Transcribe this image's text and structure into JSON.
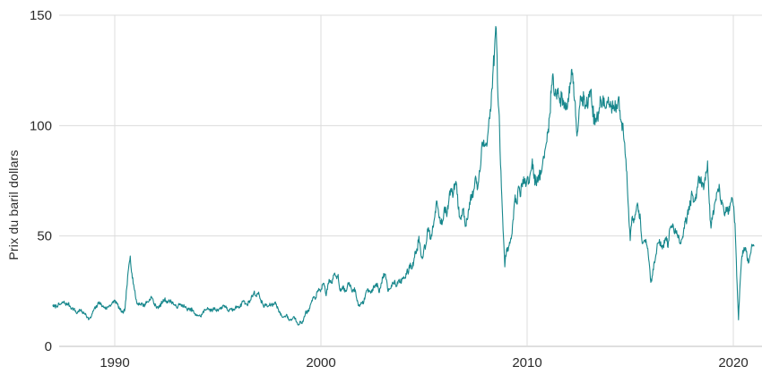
{
  "colors": {
    "line": "#17878C",
    "grid": "#DCDCDC",
    "axis_line": "#BFBFBF",
    "text": "#2B2B2B",
    "background": "#FFFFFF"
  },
  "chart_data": {
    "type": "line",
    "title": "",
    "xlabel": "",
    "ylabel": "Prix du baril dollars",
    "legend_position": "none",
    "grid": true,
    "x_ticks": [
      "1990",
      "2000",
      "2010",
      "2020"
    ],
    "y_ticks": [
      "0",
      "50",
      "100",
      "150"
    ],
    "xlim": [
      1987.0,
      2021.4
    ],
    "ylim": [
      0,
      150
    ],
    "series": [
      {
        "name": "Prix du baril (dollars)",
        "x_start_year": 1987,
        "x_step_months": 1,
        "values": [
          18.6,
          17.9,
          18.3,
          18.7,
          18.9,
          19.2,
          20.1,
          19.6,
          18.9,
          19.3,
          18.2,
          17.2,
          17.0,
          16.2,
          14.8,
          16.2,
          16.3,
          15.6,
          14.9,
          14.9,
          13.2,
          12.3,
          12.9,
          15.0,
          16.9,
          17.5,
          18.8,
          20.2,
          18.9,
          18.0,
          17.8,
          17.1,
          17.8,
          18.7,
          18.9,
          19.8,
          20.9,
          19.6,
          18.4,
          16.6,
          15.9,
          15.0,
          17.3,
          26.5,
          35.0,
          40.9,
          33.0,
          28.0,
          23.0,
          19.2,
          19.5,
          19.1,
          19.3,
          18.3,
          19.6,
          20.2,
          20.6,
          22.3,
          21.6,
          19.0,
          18.2,
          17.9,
          17.7,
          19.4,
          20.2,
          21.3,
          20.6,
          20.1,
          20.6,
          20.3,
          19.5,
          18.5,
          17.7,
          18.6,
          18.8,
          18.7,
          18.4,
          17.7,
          16.9,
          16.8,
          16.4,
          16.8,
          15.4,
          14.0,
          14.3,
          13.9,
          13.6,
          14.8,
          16.1,
          16.5,
          17.6,
          16.8,
          16.1,
          16.6,
          17.3,
          16.3,
          16.6,
          17.2,
          17.1,
          18.6,
          18.4,
          17.3,
          16.1,
          16.6,
          16.6,
          16.4,
          17.1,
          18.1,
          18.2,
          17.9,
          19.8,
          20.8,
          19.2,
          18.9,
          20.0,
          21.0,
          23.0,
          24.5,
          23.0,
          23.8,
          23.6,
          20.9,
          19.4,
          17.9,
          19.2,
          17.9,
          18.6,
          18.9,
          18.6,
          19.9,
          19.2,
          17.1,
          15.2,
          14.0,
          13.1,
          13.6,
          14.5,
          12.3,
          12.1,
          12.0,
          13.4,
          12.8,
          11.0,
          9.9,
          11.2,
          10.3,
          12.6,
          15.4,
          15.5,
          16.0,
          19.1,
          20.6,
          22.6,
          22.1,
          24.7,
          25.6,
          25.6,
          27.9,
          27.3,
          22.9,
          27.8,
          30.0,
          28.7,
          30.4,
          33.2,
          31.1,
          32.6,
          25.6,
          25.7,
          27.5,
          24.6,
          25.6,
          28.5,
          27.9,
          24.8,
          25.8,
          25.6,
          20.6,
          18.9,
          18.8,
          19.5,
          20.3,
          23.8,
          25.7,
          25.4,
          24.1,
          25.9,
          26.7,
          28.4,
          27.5,
          24.4,
          28.4,
          31.3,
          32.8,
          30.3,
          24.9,
          25.9,
          27.7,
          28.5,
          29.9,
          27.2,
          29.7,
          28.8,
          30.0,
          31.3,
          31.0,
          33.9,
          33.5,
          37.7,
          35.2,
          38.4,
          43.1,
          43.3,
          49.9,
          43.2,
          39.7,
          44.6,
          45.6,
          53.2,
          52.0,
          48.7,
          54.5,
          57.6,
          64.2,
          63.0,
          58.6,
          55.3,
          57.0,
          63.2,
          60.3,
          62.2,
          70.5,
          70.0,
          68.7,
          73.8,
          73.3,
          62.1,
          57.9,
          59.0,
          62.6,
          54.3,
          57.7,
          62.2,
          67.6,
          67.3,
          71.2,
          77.1,
          70.9,
          77.3,
          82.4,
          92.5,
          91.0,
          92.1,
          95.1,
          103.7,
          109.1,
          122.9,
          134.0,
          144.1,
          113.2,
          98.2,
          71.9,
          52.5,
          36.0,
          43.9,
          43.3,
          46.6,
          50.3,
          57.4,
          68.6,
          64.5,
          72.6,
          67.8,
          72.9,
          76.8,
          74.5,
          76.2,
          73.9,
          78.9,
          84.9,
          76.1,
          74.9,
          75.7,
          77.2,
          77.9,
          82.8,
          85.4,
          91.5,
          96.5,
          103.8,
          114.7,
          123.5,
          114.5,
          114.1,
          116.9,
          110.3,
          112.9,
          109.6,
          110.6,
          108.0,
          110.8,
          119.4,
          125.5,
          119.8,
          110.4,
          95.3,
          102.7,
          113.5,
          113.0,
          111.8,
          109.2,
          109.6,
          113.0,
          116.2,
          108.6,
          102.4,
          102.7,
          103.0,
          108.0,
          111.4,
          111.7,
          109.2,
          107.9,
          110.9,
          108.2,
          109.0,
          107.6,
          107.9,
          109.6,
          111.9,
          106.9,
          101.7,
          97.2,
          87.5,
          79.1,
          62.4,
          47.9,
          58.2,
          56.0,
          59.6,
          64.2,
          61.6,
          56.7,
          46.6,
          47.7,
          48.5,
          44.4,
          38.1,
          29.0,
          32.3,
          38.3,
          41.7,
          46.8,
          48.4,
          45.0,
          45.9,
          46.7,
          49.6,
          44.8,
          53.4,
          54.7,
          55.0,
          51.7,
          52.4,
          50.4,
          46.5,
          48.6,
          51.8,
          56.3,
          57.6,
          62.8,
          64.5,
          69.2,
          65.4,
          66.1,
          72.2,
          77.0,
          74.5,
          74.3,
          72.6,
          79.0,
          84.0,
          64.9,
          53.5,
          59.5,
          64.1,
          66.2,
          71.3,
          71.4,
          64.3,
          63.9,
          59.1,
          62.9,
          59.8,
          63.3,
          67.4,
          63.8,
          55.7,
          32.0,
          12.0,
          29.5,
          40.9,
          43.3,
          44.8,
          40.5,
          38.0,
          42.0,
          46.0,
          45.5
        ]
      }
    ]
  }
}
